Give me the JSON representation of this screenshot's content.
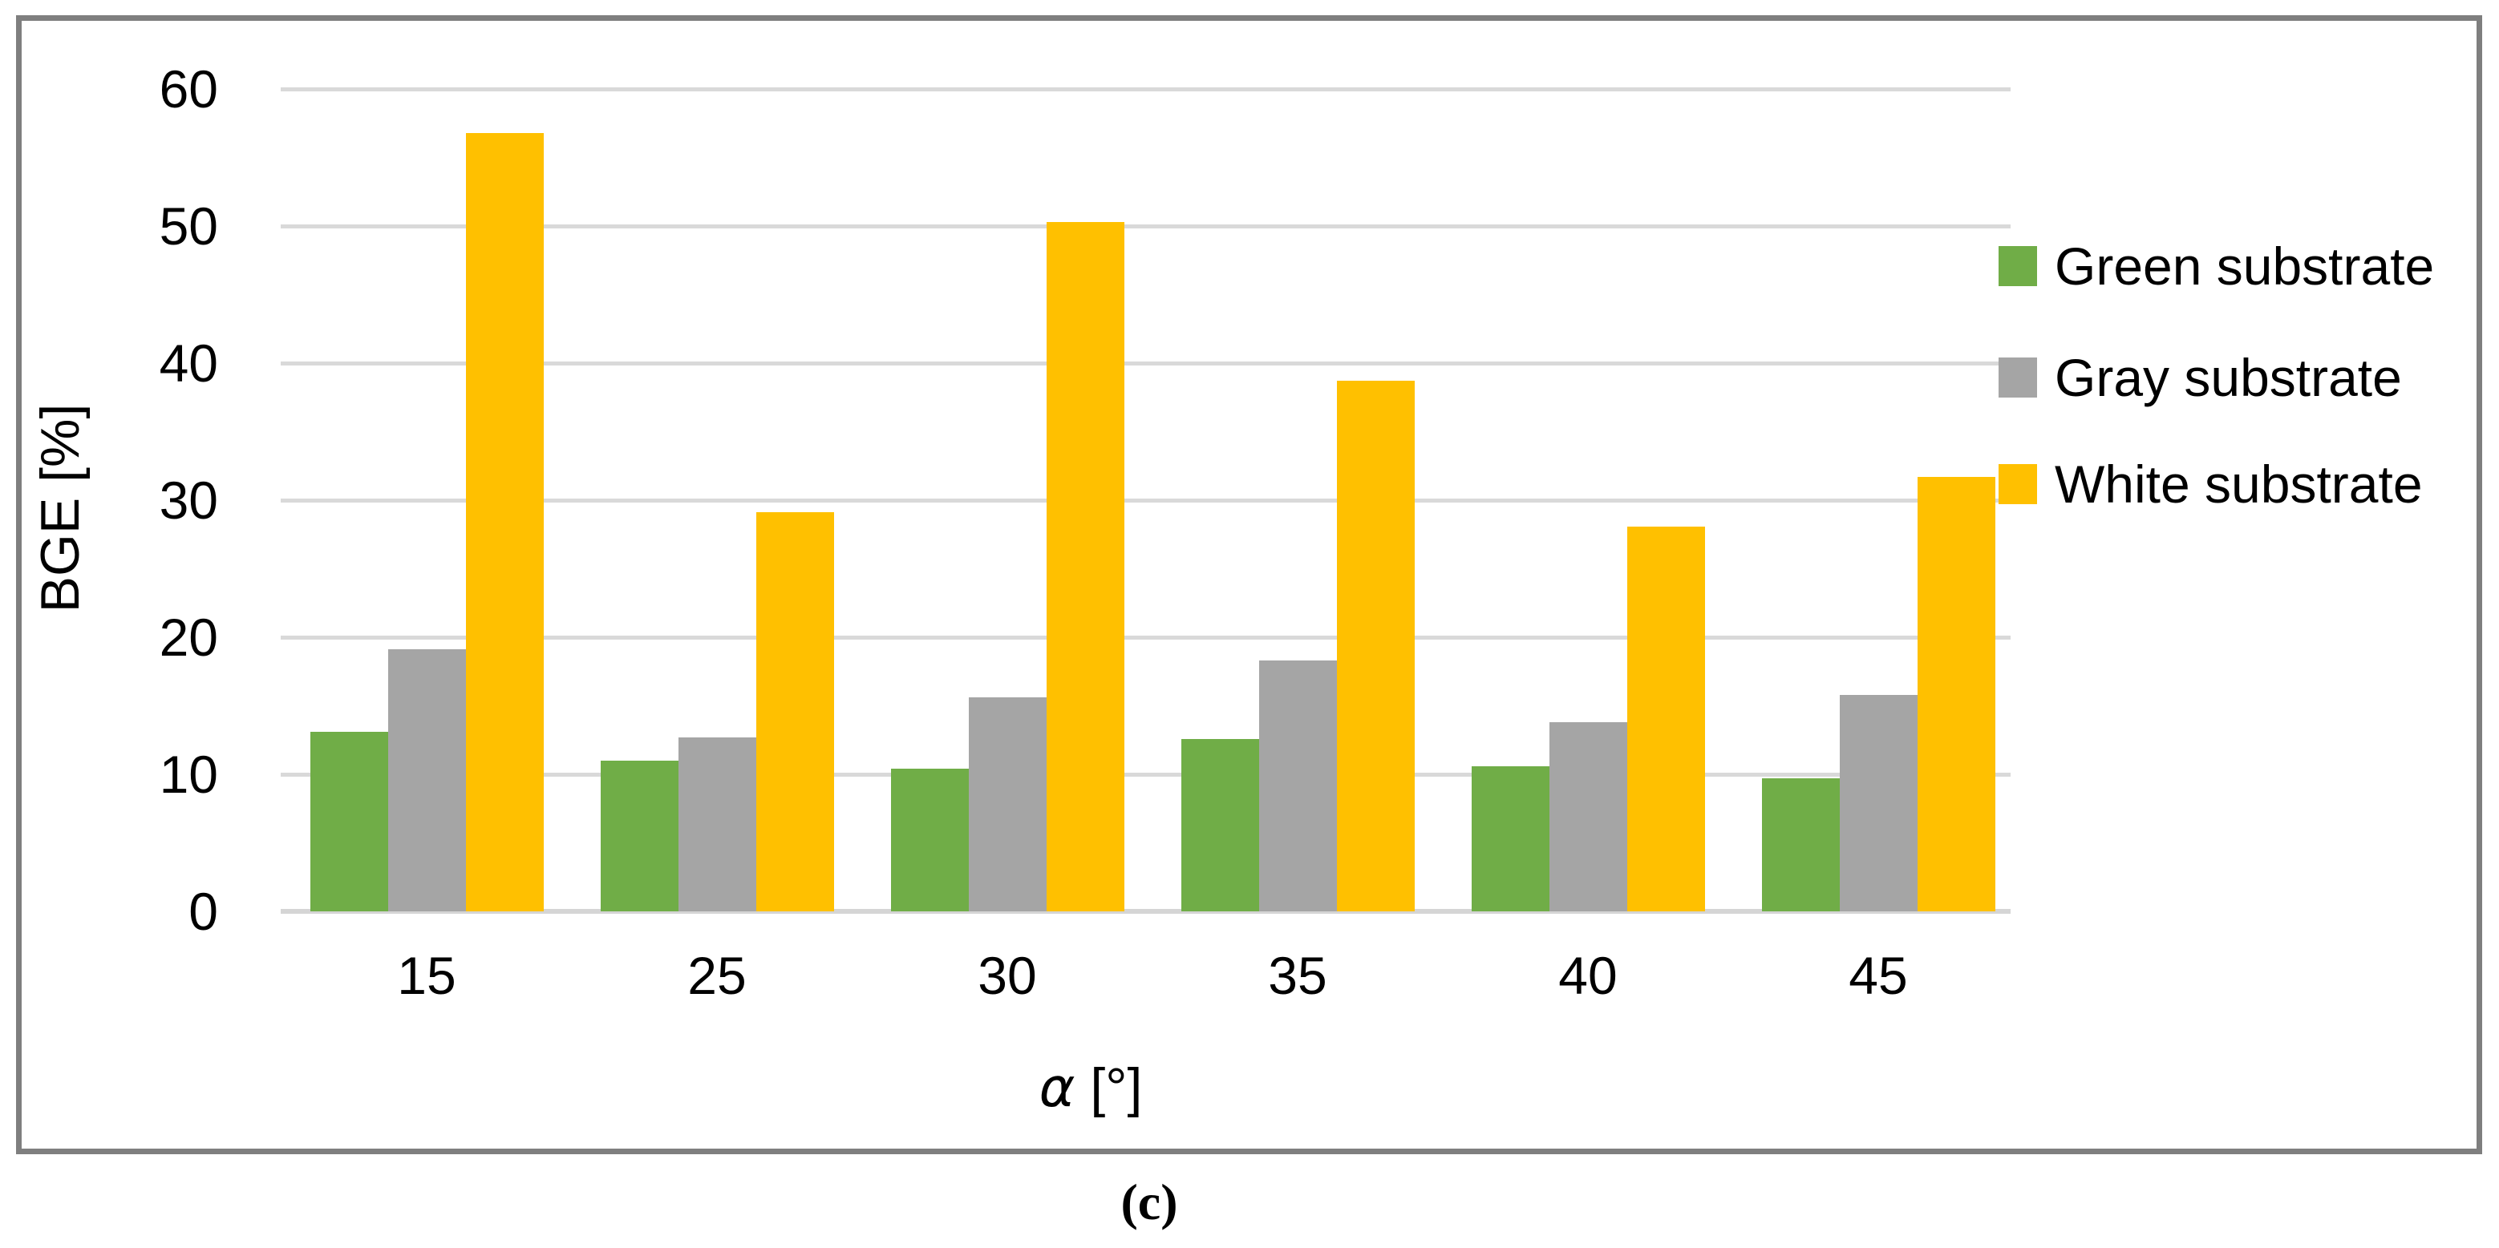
{
  "figure": {
    "caption": "(c)"
  },
  "chart_data": {
    "type": "bar",
    "title": "",
    "categories": [
      "15",
      "25",
      "30",
      "35",
      "40",
      "45"
    ],
    "series": [
      {
        "name": "Green substrate",
        "color": "#70AD47",
        "values": [
          13.1,
          11.0,
          10.4,
          12.6,
          10.6,
          9.7
        ]
      },
      {
        "name": "Gray substrate",
        "color": "#A5A5A5",
        "values": [
          19.1,
          12.7,
          15.6,
          18.3,
          13.8,
          15.8
        ]
      },
      {
        "name": "White substrate",
        "color": "#FFC000",
        "values": [
          56.8,
          29.1,
          50.3,
          38.7,
          28.1,
          31.7
        ]
      }
    ],
    "xlabel": "α [°]",
    "xlabel_symbol": "α",
    "xlabel_suffix": " [°]",
    "ylabel": "BGE [%]",
    "ylim": [
      0,
      60
    ],
    "yticks": [
      0,
      10,
      20,
      30,
      40,
      50,
      60
    ],
    "grid": true,
    "legend_position": "right",
    "colors": {
      "gridline": "#D9D9D9",
      "axis_line": "#D5D5D5",
      "border": "#7F7F7F",
      "text": "#000000",
      "background": "#FFFFFF"
    }
  }
}
